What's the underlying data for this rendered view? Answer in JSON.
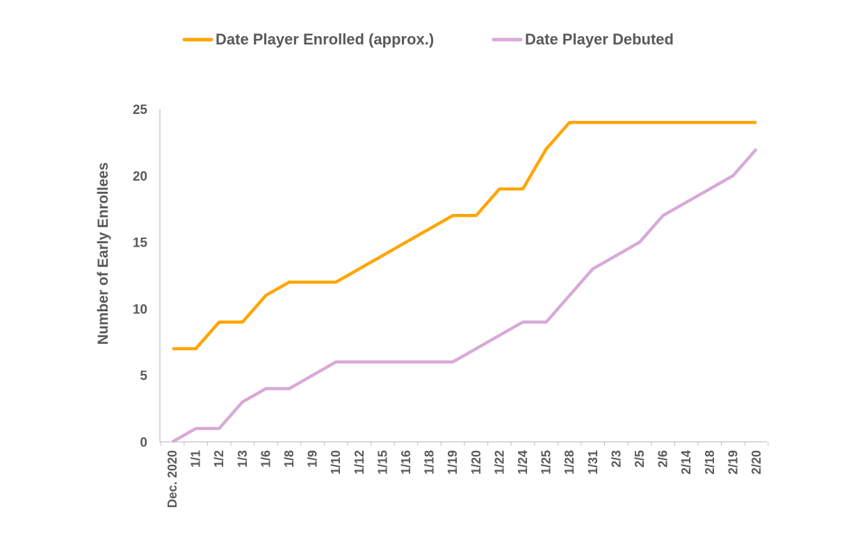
{
  "chart_data": {
    "type": "line",
    "title": "",
    "xlabel": "",
    "ylabel": "Number of Early Enrollees",
    "ylim": [
      0,
      25
    ],
    "yticks": [
      0,
      5,
      10,
      15,
      20,
      25
    ],
    "grid": false,
    "legend_position": "top",
    "categories": [
      "Dec. 2020",
      "1/1",
      "1/2",
      "1/3",
      "1/6",
      "1/8",
      "1/9",
      "1/10",
      "1/12",
      "1/15",
      "1/16",
      "1/18",
      "1/19",
      "1/20",
      "1/22",
      "1/24",
      "1/25",
      "1/28",
      "1/31",
      "2/3",
      "2/5",
      "2/6",
      "2/14",
      "2/18",
      "2/19",
      "2/20"
    ],
    "series": [
      {
        "name": "Date Player Enrolled (approx.)",
        "color": "#FFA500",
        "values": [
          7,
          7,
          9,
          9,
          11,
          12,
          12,
          12,
          13,
          14,
          15,
          16,
          17,
          17,
          19,
          19,
          22,
          24,
          24,
          24,
          24,
          24,
          24,
          24,
          24,
          24
        ]
      },
      {
        "name": "Date Player Debuted",
        "color": "#D8A9D8",
        "values": [
          0,
          1,
          1,
          3,
          4,
          4,
          5,
          6,
          6,
          6,
          6,
          6,
          6,
          7,
          8,
          9,
          9,
          11,
          13,
          14,
          15,
          17,
          18,
          19,
          20,
          22
        ]
      }
    ]
  }
}
